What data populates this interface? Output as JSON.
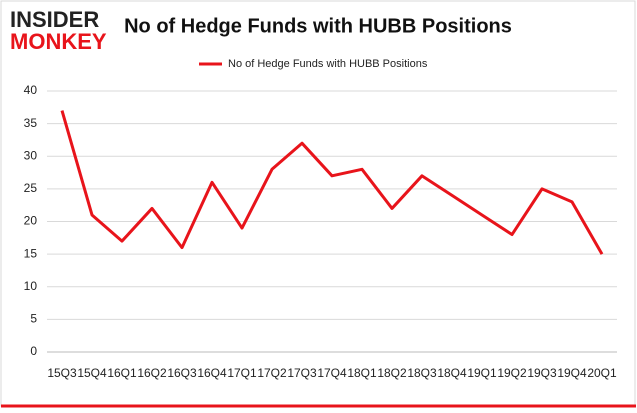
{
  "logo": {
    "line1": "INSIDER",
    "line2": "MONKEY"
  },
  "chart_data": {
    "type": "line",
    "title": "No of Hedge Funds with HUBB Positions",
    "categories": [
      "15Q3",
      "15Q4",
      "16Q1",
      "16Q2",
      "16Q3",
      "16Q4",
      "17Q1",
      "17Q2",
      "17Q3",
      "17Q4",
      "18Q1",
      "18Q2",
      "18Q3",
      "18Q4",
      "19Q1",
      "19Q2",
      "19Q3",
      "19Q4",
      "20Q1"
    ],
    "series": [
      {
        "name": "No of Hedge Funds with HUBB Positions",
        "color": "#e8141b",
        "values": [
          37,
          21,
          17,
          22,
          16,
          26,
          19,
          28,
          32,
          27,
          28,
          22,
          27,
          24,
          21,
          18,
          25,
          23,
          15
        ]
      }
    ],
    "ylim": [
      0,
      40
    ],
    "yticks": [
      0,
      5,
      10,
      15,
      20,
      25,
      30,
      35,
      40
    ],
    "grid": true,
    "legend": "top"
  }
}
